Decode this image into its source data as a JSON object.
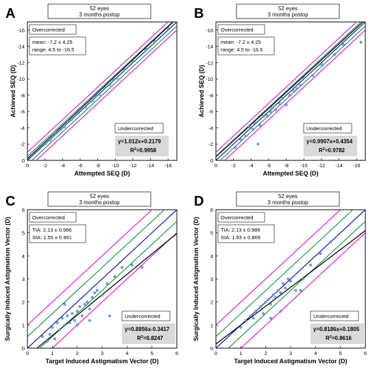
{
  "chart_data": [
    {
      "type": "scatter",
      "panel_label": "A",
      "header": [
        "52 eyes",
        "3 months postop"
      ],
      "xlabel": "Attempted SEQ (D)",
      "ylabel": "Achieved SEQ (D)",
      "xlim": [
        0,
        -17
      ],
      "ylim": [
        0,
        -17
      ],
      "xticks": [
        0,
        -2,
        -4,
        -6,
        -8,
        -10,
        -12,
        -14,
        -16
      ],
      "xtick_labels": [
        "0",
        "-2",
        "-4",
        "-6",
        "-8",
        "-10",
        "-12",
        "-14",
        "-16"
      ],
      "yticks": [
        0,
        -2,
        -4,
        -6,
        -8,
        -10,
        -12,
        -14,
        -16
      ],
      "ytick_labels": [
        "0",
        "-2",
        "-4",
        "-6",
        "-8",
        "-10",
        "-12",
        "-14",
        "-16"
      ],
      "overcorrected_label": "Overcorrected",
      "undercorrected_label": "Undercorrected",
      "stats": [
        "mean: -7.2  ± 4.25",
        "range: 4.5 to -16.5"
      ],
      "equation": "y=1.012x+0.2179",
      "r2_prefix": "R",
      "r2_sup": "2",
      "r2_value": "=0.9958",
      "fit": {
        "slope": 1.012,
        "intercept": 0.2179
      },
      "bands": [
        {
          "offset": 0.5,
          "color": "#1a9850"
        },
        {
          "offset": 1.0,
          "color": "#e01bd9"
        }
      ],
      "reference_color": "#1f1fb4",
      "points_x": [
        -2.0,
        -2.6,
        -3.2,
        -3.8,
        -4.2,
        -4.6,
        -5.0,
        -5.4,
        -5.8,
        -6.2,
        -6.6,
        -7.0,
        -7.4,
        -7.8,
        -8.2,
        -8.8,
        -9.4,
        -9.8,
        -10.2,
        -11.0,
        -12.0,
        -13.5,
        -14.5,
        -16.0
      ],
      "points_y": [
        -2.0,
        -2.5,
        -3.3,
        -3.8,
        -4.1,
        -4.7,
        -5.0,
        -5.5,
        -5.8,
        -6.3,
        -6.5,
        -7.1,
        -7.3,
        -7.9,
        -8.1,
        -8.9,
        -9.3,
        -9.9,
        -10.1,
        -11.1,
        -12.1,
        -13.6,
        -14.6,
        -16.2
      ]
    },
    {
      "type": "scatter",
      "panel_label": "B",
      "header": [
        "52 eyes",
        "3 months postop"
      ],
      "xlabel": "Attempted SEQ (D)",
      "ylabel": "Achieved SEQ (D)",
      "xlim": [
        0,
        -17
      ],
      "ylim": [
        0,
        -17
      ],
      "xticks": [
        0,
        -2,
        -4,
        -6,
        -8,
        -10,
        -12,
        -14,
        -16
      ],
      "xtick_labels": [
        "0",
        "-2",
        "-4",
        "-6",
        "-8",
        "-10",
        "-12",
        "-14",
        "-16"
      ],
      "yticks": [
        0,
        -2,
        -4,
        -6,
        -8,
        -10,
        -12,
        -14,
        -16
      ],
      "ytick_labels": [
        "0",
        "-2",
        "-4",
        "-6",
        "-8",
        "-10",
        "-12",
        "-14",
        "-16"
      ],
      "overcorrected_label": "Overcorrected",
      "undercorrected_label": "Undercorrected",
      "stats": [
        "mean: -7.2  ± 4.25",
        "range: 4.5 to -16.5"
      ],
      "equation": "y=0.9907x+0.4354",
      "r2_prefix": "R",
      "r2_sup": "2",
      "r2_value": "=0.9782",
      "fit": {
        "slope": 0.9907,
        "intercept": 0.4354
      },
      "bands": [
        {
          "offset": 0.5,
          "color": "#1a9850"
        },
        {
          "offset": 1.0,
          "color": "#e01bd9"
        }
      ],
      "reference_color": "#1f1fb4",
      "points_x": [
        -2.2,
        -2.8,
        -3.4,
        -3.8,
        -4.2,
        -4.4,
        -4.8,
        -5.0,
        -5.4,
        -5.8,
        -6.2,
        -6.4,
        -6.8,
        -7.2,
        -7.6,
        -8.0,
        -8.4,
        -8.8,
        -9.2,
        -9.6,
        -10.0,
        -11.0,
        -12.0,
        -13.5,
        -14.5,
        -16.5
      ],
      "points_y": [
        -1.6,
        -2.6,
        -3.0,
        -4.1,
        -3.8,
        -4.6,
        -2.0,
        -4.3,
        -5.4,
        -5.5,
        -6.0,
        -6.4,
        -6.2,
        -7.0,
        -7.6,
        -6.8,
        -8.0,
        -8.6,
        -8.8,
        -9.2,
        -10.1,
        -10.4,
        -11.8,
        -13.0,
        -14.2,
        -14.5
      ]
    },
    {
      "type": "scatter",
      "panel_label": "C",
      "header": [
        "52 eyes",
        "3 months postop"
      ],
      "xlabel": "Target Induced Astigmatism Vector (D)",
      "ylabel": "Surgically Induced Astigmatism Vector (D)",
      "xlim": [
        0,
        6
      ],
      "ylim": [
        0,
        6
      ],
      "xticks": [
        0,
        1,
        2,
        3,
        4,
        5,
        6
      ],
      "xtick_labels": [
        "0",
        "1",
        "2",
        "3",
        "4",
        "5",
        "6"
      ],
      "yticks": [
        0,
        1,
        2,
        3,
        4,
        5,
        6
      ],
      "ytick_labels": [
        "0",
        "1",
        "2",
        "3",
        "4",
        "5",
        "6"
      ],
      "overcorrected_label": "Overcorrected",
      "undercorrected_label": "Undercorrected",
      "stats": [
        "TIA: 2.13  ±  0.986",
        "SIA: 1.55  ±  0.961"
      ],
      "equation": "y=0.8856x-0.3417",
      "r2_prefix": "R",
      "r2_sup": "2",
      "r2_value": "=0.8247",
      "fit": {
        "slope": 0.8856,
        "intercept": -0.3417
      },
      "bands": [
        {
          "offset": 0.5,
          "color": "#1a9850"
        },
        {
          "offset": 1.0,
          "color": "#e01bd9"
        }
      ],
      "reference_color": "#1f1fb4",
      "points_x": [
        0.6,
        0.8,
        0.9,
        1.0,
        1.1,
        1.2,
        1.3,
        1.4,
        1.5,
        1.6,
        1.7,
        1.8,
        1.9,
        2.0,
        2.1,
        2.2,
        2.3,
        2.4,
        2.5,
        2.6,
        2.7,
        2.8,
        3.0,
        3.2,
        3.5,
        3.8,
        4.2,
        4.6,
        1.5,
        2.0,
        2.5,
        3.3
      ],
      "points_y": [
        0.5,
        0.3,
        0.6,
        0.9,
        0.4,
        1.1,
        0.8,
        1.3,
        1.0,
        1.4,
        1.1,
        1.5,
        1.2,
        1.6,
        1.8,
        1.4,
        1.9,
        2.0,
        1.7,
        2.2,
        2.4,
        2.5,
        2.3,
        2.8,
        3.1,
        3.5,
        3.6,
        3.5,
        1.9,
        1.0,
        1.2,
        1.4
      ]
    },
    {
      "type": "scatter",
      "panel_label": "D",
      "header": [
        "52 eyes",
        "3 months postop"
      ],
      "xlabel": "Target Induced Astigmatism Vector (D)",
      "ylabel": "Surgically Induced Astigmatism Vector (D)",
      "xlim": [
        0,
        6
      ],
      "ylim": [
        0,
        6
      ],
      "xticks": [
        0,
        1,
        2,
        3,
        4,
        5,
        6
      ],
      "xtick_labels": [
        "0",
        "1",
        "2",
        "3",
        "4",
        "5",
        "6"
      ],
      "yticks": [
        0,
        1,
        2,
        3,
        4,
        5,
        6
      ],
      "ytick_labels": [
        "0",
        "1",
        "2",
        "3",
        "4",
        "5",
        "6"
      ],
      "overcorrected_label": "Overcorrected",
      "undercorrected_label": "Undercorrected",
      "stats": [
        "TIA: 2.13  ±  0.986",
        "SIA: 1.93  ±  0.869"
      ],
      "equation": "y=0.8186x+0.1805",
      "r2_prefix": "R",
      "r2_sup": "2",
      "r2_value": "=0.8616",
      "fit": {
        "slope": 0.8186,
        "intercept": 0.1805
      },
      "bands": [
        {
          "offset": 0.5,
          "color": "#1a9850"
        },
        {
          "offset": 1.0,
          "color": "#e01bd9"
        }
      ],
      "reference_color": "#1f1fb4",
      "points_x": [
        1.0,
        1.2,
        1.4,
        1.5,
        1.6,
        1.8,
        1.9,
        2.0,
        2.1,
        2.2,
        2.3,
        2.4,
        2.5,
        2.6,
        2.7,
        2.8,
        2.9,
        3.0,
        3.2,
        3.5,
        3.8,
        4.2,
        4.6,
        2.2,
        2.6,
        3.4
      ],
      "points_y": [
        0.9,
        1.2,
        1.4,
        1.3,
        1.6,
        1.8,
        1.5,
        2.0,
        2.1,
        1.9,
        2.3,
        2.2,
        2.5,
        2.4,
        2.8,
        2.6,
        3.0,
        2.9,
        2.5,
        3.0,
        3.6,
        4.1,
        4.6,
        1.3,
        1.6,
        2.5
      ]
    }
  ]
}
